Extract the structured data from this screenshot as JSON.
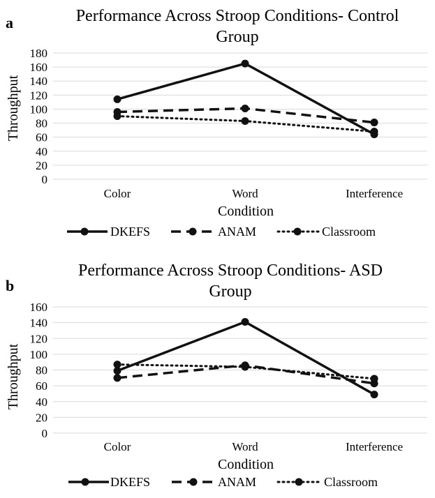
{
  "chart_data": [
    {
      "type": "line",
      "panel_label": "a",
      "title_lines": [
        "Performance Across Stroop Conditions- Control",
        "Group"
      ],
      "xlabel": "Condition",
      "ylabel": "Throughput",
      "categories": [
        "Color",
        "Word",
        "Interference"
      ],
      "ylim": [
        0,
        180
      ],
      "yticks": [
        0,
        20,
        40,
        60,
        80,
        100,
        120,
        140,
        160,
        180
      ],
      "grid": true,
      "legend_position": "bottom",
      "series": [
        {
          "name": "DKEFS",
          "values": [
            114,
            165,
            64
          ],
          "style": "solid"
        },
        {
          "name": "ANAM",
          "values": [
            96,
            101,
            81
          ],
          "style": "dashed"
        },
        {
          "name": "Classroom",
          "values": [
            90,
            83,
            68
          ],
          "style": "dotted"
        }
      ]
    },
    {
      "type": "line",
      "panel_label": "b",
      "title_lines": [
        "Performance Across Stroop Conditions- ASD",
        "Group"
      ],
      "xlabel": "Condition",
      "ylabel": "Throughput",
      "categories": [
        "Color",
        "Word",
        "Interference"
      ],
      "ylim": [
        0,
        160
      ],
      "yticks": [
        0,
        20,
        40,
        60,
        80,
        100,
        120,
        140,
        160
      ],
      "grid": true,
      "legend_position": "bottom",
      "series": [
        {
          "name": "DKEFS",
          "values": [
            79,
            141,
            49
          ],
          "style": "solid"
        },
        {
          "name": "ANAM",
          "values": [
            70,
            86,
            63
          ],
          "style": "dashed"
        },
        {
          "name": "Classroom",
          "values": [
            87,
            84,
            69
          ],
          "style": "dotted"
        }
      ]
    }
  ]
}
